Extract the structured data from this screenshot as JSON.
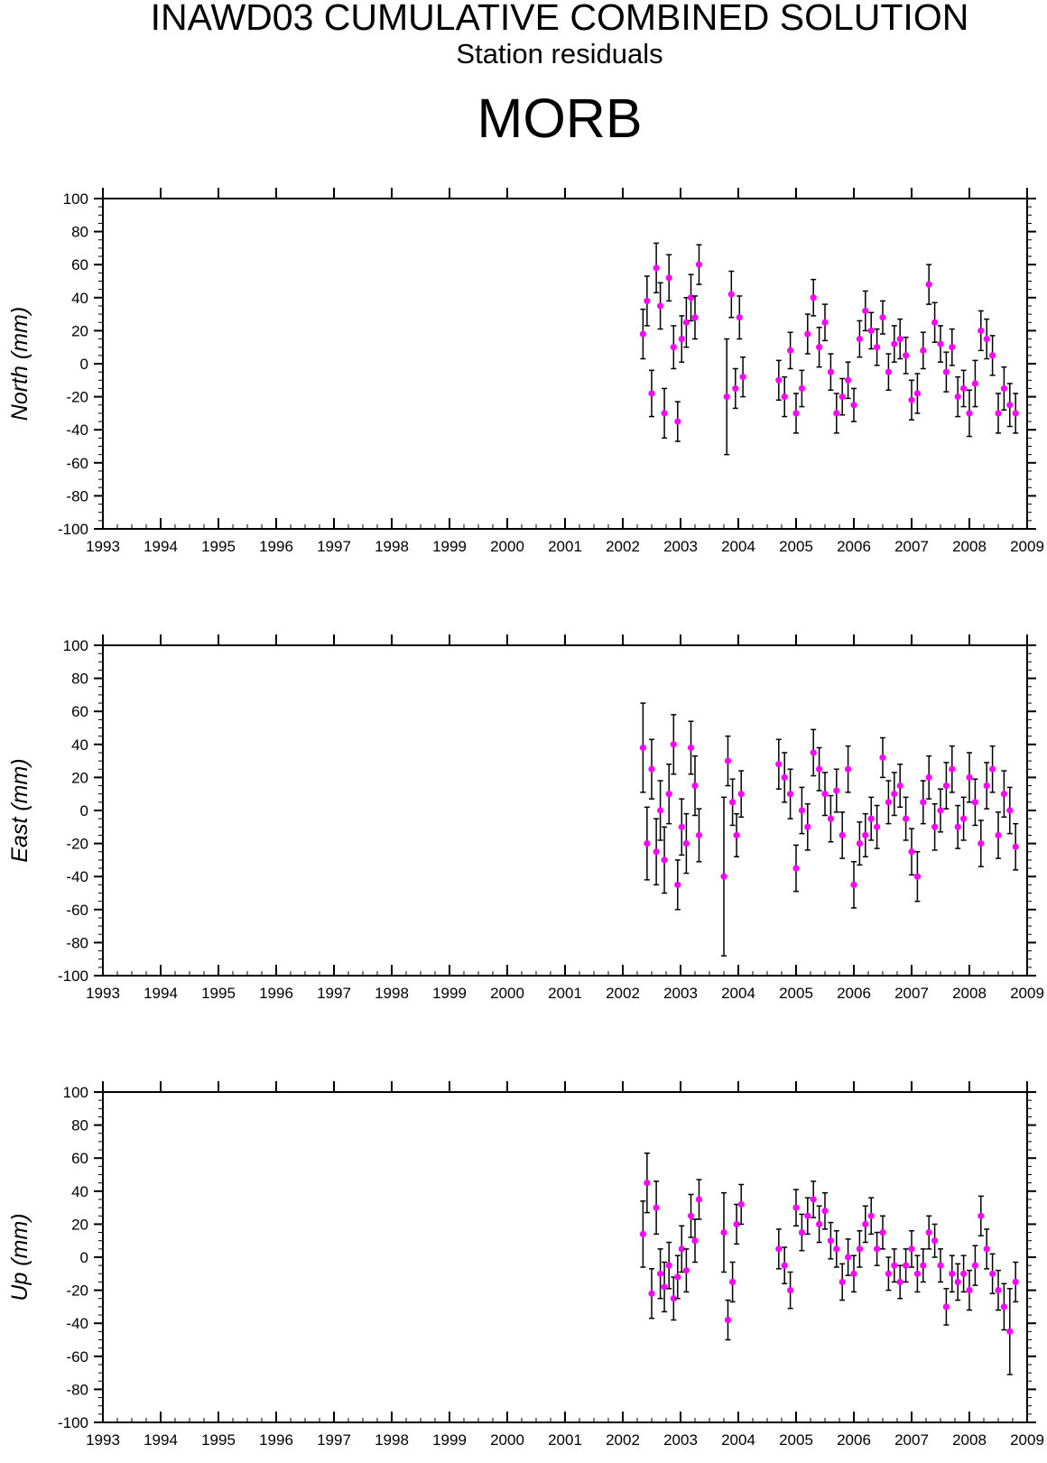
{
  "header": {
    "title": "INAWD03 CUMULATIVE COMBINED SOLUTION",
    "subtitle": "Station residuals",
    "station": "MORB"
  },
  "colors": {
    "point": "#ff00ff",
    "errorbar": "#000000",
    "axis": "#000000"
  },
  "chart_data": [
    {
      "type": "scatter",
      "ylabel": "North (mm)",
      "xlim": [
        1993,
        2009
      ],
      "ylim": [
        -100,
        100
      ],
      "x_ticks": [
        "1993",
        "1994",
        "1995",
        "1996",
        "1997",
        "1998",
        "1999",
        "2000",
        "2001",
        "2002",
        "2003",
        "2004",
        "2005",
        "2006",
        "2007",
        "2008",
        "2009"
      ],
      "y_ticks": [
        "100",
        "80",
        "60",
        "40",
        "20",
        "0",
        "-20",
        "-40",
        "-60",
        "-80",
        "-100"
      ],
      "series": [
        {
          "x": [
            2002.35,
            2002.42,
            2002.5,
            2002.58,
            2002.65,
            2002.72,
            2002.8,
            2002.88,
            2002.95,
            2003.02,
            2003.1,
            2003.18,
            2003.25,
            2003.32,
            2003.8,
            2003.88,
            2003.95,
            2004.02,
            2004.08,
            2004.7,
            2004.8,
            2004.9,
            2005.0,
            2005.1,
            2005.2,
            2005.3,
            2005.4,
            2005.5,
            2005.6,
            2005.7,
            2005.8,
            2005.9,
            2006.0,
            2006.1,
            2006.2,
            2006.3,
            2006.4,
            2006.5,
            2006.6,
            2006.7,
            2006.8,
            2006.9,
            2007.0,
            2007.1,
            2007.2,
            2007.3,
            2007.4,
            2007.5,
            2007.6,
            2007.7,
            2007.8,
            2007.9,
            2008.0,
            2008.1,
            2008.2,
            2008.3,
            2008.4,
            2008.5,
            2008.6,
            2008.7,
            2008.8
          ],
          "y": [
            18,
            38,
            -18,
            58,
            35,
            -30,
            52,
            10,
            -35,
            15,
            25,
            40,
            28,
            60,
            -20,
            42,
            -15,
            28,
            -8,
            -10,
            -20,
            8,
            -30,
            -15,
            18,
            40,
            10,
            25,
            -5,
            -30,
            -20,
            -10,
            -25,
            15,
            32,
            20,
            10,
            28,
            -5,
            12,
            15,
            5,
            -22,
            -18,
            8,
            48,
            25,
            12,
            -5,
            10,
            -20,
            -15,
            -30,
            -12,
            20,
            15,
            5,
            -30,
            -15,
            -25,
            -30
          ],
          "err": [
            15,
            15,
            14,
            15,
            14,
            15,
            14,
            13,
            12,
            14,
            15,
            14,
            13,
            12,
            35,
            14,
            12,
            13,
            12,
            12,
            12,
            11,
            12,
            11,
            12,
            11,
            12,
            11,
            11,
            12,
            11,
            11,
            10,
            11,
            12,
            11,
            11,
            10,
            11,
            11,
            12,
            11,
            12,
            12,
            11,
            12,
            12,
            11,
            12,
            11,
            12,
            11,
            14,
            14,
            12,
            12,
            12,
            12,
            13,
            13,
            12
          ]
        }
      ]
    },
    {
      "type": "scatter",
      "ylabel": "East (mm)",
      "xlim": [
        1993,
        2009
      ],
      "ylim": [
        -100,
        100
      ],
      "x_ticks": [
        "1993",
        "1994",
        "1995",
        "1996",
        "1997",
        "1998",
        "1999",
        "2000",
        "2001",
        "2002",
        "2003",
        "2004",
        "2005",
        "2006",
        "2007",
        "2008",
        "2009"
      ],
      "y_ticks": [
        "100",
        "80",
        "60",
        "40",
        "20",
        "0",
        "-20",
        "-40",
        "-60",
        "-80",
        "-100"
      ],
      "series": [
        {
          "x": [
            2002.35,
            2002.42,
            2002.5,
            2002.58,
            2002.65,
            2002.72,
            2002.8,
            2002.88,
            2002.95,
            2003.02,
            2003.1,
            2003.18,
            2003.25,
            2003.32,
            2003.75,
            2003.82,
            2003.9,
            2003.97,
            2004.05,
            2004.7,
            2004.8,
            2004.9,
            2005.0,
            2005.1,
            2005.2,
            2005.3,
            2005.4,
            2005.5,
            2005.6,
            2005.7,
            2005.8,
            2005.9,
            2006.0,
            2006.1,
            2006.2,
            2006.3,
            2006.4,
            2006.5,
            2006.6,
            2006.7,
            2006.8,
            2006.9,
            2007.0,
            2007.1,
            2007.2,
            2007.3,
            2007.4,
            2007.5,
            2007.6,
            2007.7,
            2007.8,
            2007.9,
            2008.0,
            2008.1,
            2008.2,
            2008.3,
            2008.4,
            2008.5,
            2008.6,
            2008.7,
            2008.8
          ],
          "y": [
            38,
            -20,
            25,
            -25,
            0,
            -30,
            10,
            40,
            -45,
            -10,
            -20,
            38,
            15,
            -15,
            -40,
            30,
            5,
            -15,
            10,
            28,
            20,
            10,
            -35,
            0,
            -10,
            35,
            25,
            10,
            -5,
            12,
            -15,
            25,
            -45,
            -20,
            -15,
            -5,
            -10,
            32,
            5,
            10,
            15,
            -5,
            -25,
            -40,
            5,
            20,
            -10,
            0,
            15,
            25,
            -10,
            -5,
            20,
            5,
            -20,
            15,
            25,
            -15,
            10,
            0,
            -22
          ],
          "err": [
            27,
            22,
            18,
            20,
            18,
            20,
            18,
            18,
            15,
            17,
            18,
            16,
            18,
            16,
            48,
            15,
            14,
            13,
            14,
            15,
            15,
            15,
            14,
            14,
            14,
            14,
            13,
            13,
            14,
            13,
            14,
            14,
            14,
            13,
            13,
            13,
            13,
            12,
            13,
            13,
            13,
            13,
            14,
            15,
            13,
            13,
            14,
            13,
            14,
            14,
            13,
            13,
            15,
            14,
            14,
            14,
            14,
            14,
            14,
            14,
            14
          ]
        }
      ]
    },
    {
      "type": "scatter",
      "ylabel": "Up (mm)",
      "xlim": [
        1993,
        2009
      ],
      "ylim": [
        -100,
        100
      ],
      "x_ticks": [
        "1993",
        "1994",
        "1995",
        "1996",
        "1997",
        "1998",
        "1999",
        "2000",
        "2001",
        "2002",
        "2003",
        "2004",
        "2005",
        "2006",
        "2007",
        "2008",
        "2009"
      ],
      "y_ticks": [
        "100",
        "80",
        "60",
        "40",
        "20",
        "0",
        "-20",
        "-40",
        "-60",
        "-80",
        "-100"
      ],
      "series": [
        {
          "x": [
            2002.35,
            2002.42,
            2002.5,
            2002.58,
            2002.65,
            2002.72,
            2002.8,
            2002.88,
            2002.95,
            2003.02,
            2003.1,
            2003.18,
            2003.25,
            2003.32,
            2003.75,
            2003.82,
            2003.9,
            2003.97,
            2004.05,
            2004.7,
            2004.8,
            2004.9,
            2005.0,
            2005.1,
            2005.2,
            2005.3,
            2005.4,
            2005.5,
            2005.6,
            2005.7,
            2005.8,
            2005.9,
            2006.0,
            2006.1,
            2006.2,
            2006.3,
            2006.4,
            2006.5,
            2006.6,
            2006.7,
            2006.8,
            2006.9,
            2007.0,
            2007.1,
            2007.2,
            2007.3,
            2007.4,
            2007.5,
            2007.6,
            2007.7,
            2007.8,
            2007.9,
            2008.0,
            2008.1,
            2008.2,
            2008.3,
            2008.4,
            2008.5,
            2008.6,
            2008.7,
            2008.8
          ],
          "y": [
            14,
            45,
            -22,
            30,
            -10,
            -18,
            -5,
            -25,
            -12,
            5,
            -8,
            25,
            10,
            35,
            15,
            -38,
            -15,
            20,
            32,
            5,
            -5,
            -20,
            30,
            15,
            25,
            35,
            20,
            28,
            10,
            5,
            -15,
            0,
            -10,
            5,
            20,
            25,
            5,
            15,
            -10,
            -5,
            -15,
            -5,
            5,
            -10,
            -5,
            15,
            10,
            -5,
            -30,
            -10,
            -15,
            -10,
            -20,
            -5,
            25,
            5,
            -10,
            -20,
            -30,
            -45,
            -15
          ],
          "err": [
            20,
            18,
            15,
            16,
            15,
            15,
            14,
            13,
            13,
            14,
            13,
            13,
            13,
            12,
            24,
            12,
            12,
            12,
            12,
            12,
            11,
            11,
            11,
            11,
            11,
            11,
            11,
            11,
            11,
            11,
            11,
            11,
            11,
            11,
            11,
            11,
            10,
            10,
            10,
            10,
            10,
            10,
            11,
            11,
            10,
            10,
            10,
            10,
            11,
            11,
            11,
            11,
            12,
            12,
            12,
            12,
            12,
            12,
            14,
            26,
            12
          ]
        }
      ]
    }
  ]
}
